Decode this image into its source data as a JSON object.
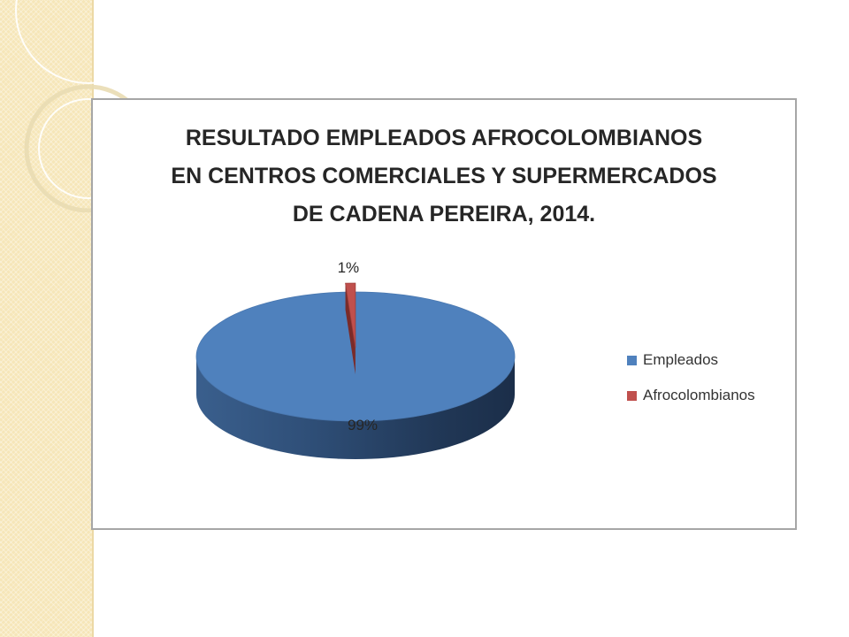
{
  "chart_data": {
    "type": "pie",
    "title_lines": [
      "RESULTADO EMPLEADOS AFROCOLOMBIANOS",
      "EN CENTROS COMERCIALES Y SUPERMERCADOS",
      "DE CADENA PEREIRA, 2014."
    ],
    "slices": [
      {
        "name": "Empleados",
        "value": 99,
        "label": "99%",
        "color": "#4f81bd"
      },
      {
        "name": "Afrocolombianos",
        "value": 1,
        "label": "1%",
        "color": "#c0504d"
      }
    ],
    "legend_position": "right"
  }
}
